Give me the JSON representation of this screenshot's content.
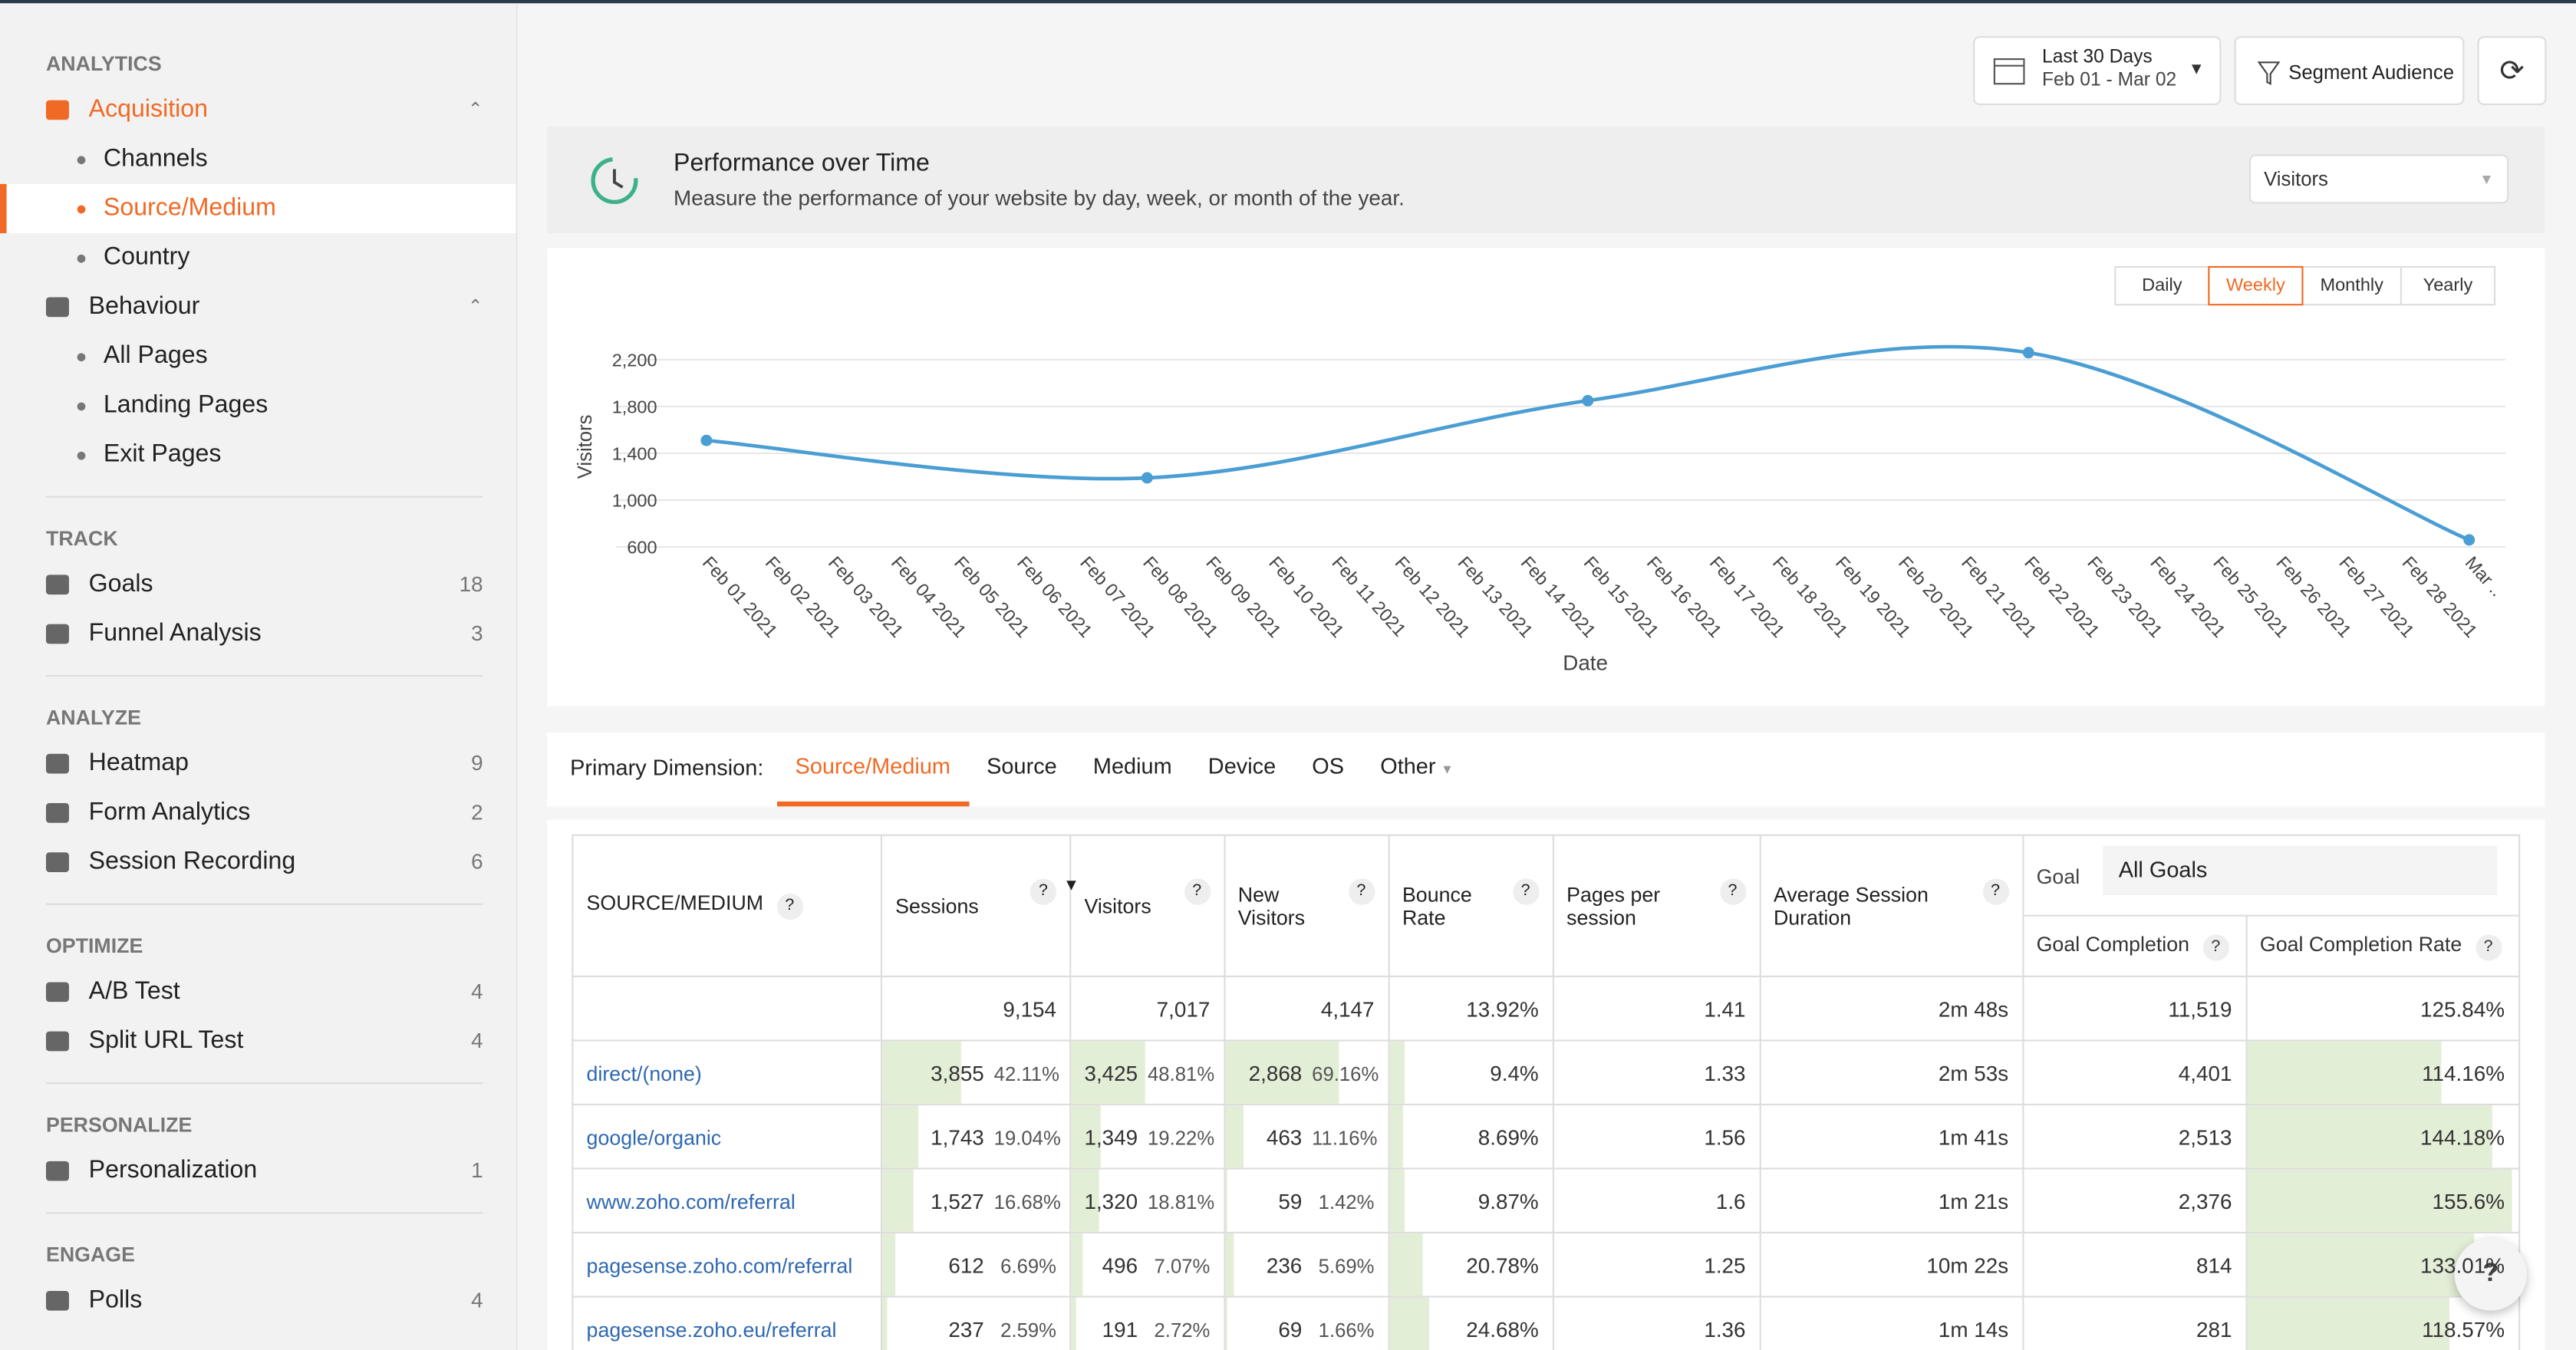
{
  "sidebar": {
    "sections": [
      {
        "title": "ANALYTICS",
        "items": [
          {
            "label": "Acquisition",
            "children": [
              "Channels",
              "Source/Medium",
              "Country"
            ],
            "active_child": "Source/Medium"
          },
          {
            "label": "Behaviour",
            "children": [
              "All Pages",
              "Landing Pages",
              "Exit Pages"
            ]
          }
        ]
      },
      {
        "title": "TRACK",
        "items": [
          {
            "label": "Goals",
            "count": 18
          },
          {
            "label": "Funnel Analysis",
            "count": 3
          }
        ]
      },
      {
        "title": "ANALYZE",
        "items": [
          {
            "label": "Heatmap",
            "count": 9
          },
          {
            "label": "Form Analytics",
            "count": 2
          },
          {
            "label": "Session Recording",
            "count": 6
          }
        ]
      },
      {
        "title": "OPTIMIZE",
        "items": [
          {
            "label": "A/B Test",
            "count": 4
          },
          {
            "label": "Split URL Test",
            "count": 4
          }
        ]
      },
      {
        "title": "PERSONALIZE",
        "items": [
          {
            "label": "Personalization",
            "count": 1
          }
        ]
      },
      {
        "title": "ENGAGE",
        "items": [
          {
            "label": "Polls",
            "count": 4
          }
        ]
      }
    ]
  },
  "toolbar": {
    "date_range": "Last 30 Days",
    "date_span": "Feb 01 - Mar 02",
    "segment": "Segment Audience"
  },
  "performance": {
    "title": "Performance over Time",
    "subtitle": "Measure the performance of your website by day, week, or month of the year.",
    "metric": "Visitors",
    "periods": [
      "Daily",
      "Weekly",
      "Monthly",
      "Yearly"
    ],
    "active_period": "Weekly"
  },
  "chart_data": {
    "type": "line",
    "x_label": "Date",
    "y_label": "Visitors",
    "color": "#4a9ed3",
    "grid": true,
    "categories": [
      "Feb 01 2021",
      "Feb 02 2021",
      "Feb 03 2021",
      "Feb 04 2021",
      "Feb 05 2021",
      "Feb 06 2021",
      "Feb 07 2021",
      "Feb 08 2021",
      "Feb 09 2021",
      "Feb 10 2021",
      "Feb 11 2021",
      "Feb 12 2021",
      "Feb 13 2021",
      "Feb 14 2021",
      "Feb 15 2021",
      "Feb 16 2021",
      "Feb 17 2021",
      "Feb 18 2021",
      "Feb 19 2021",
      "Feb 20 2021",
      "Feb 21 2021",
      "Feb 22 2021",
      "Feb 23 2021",
      "Feb 24 2021",
      "Feb 25 2021",
      "Feb 26 2021",
      "Feb 27 2021",
      "Feb 28 2021",
      "Mar .."
    ],
    "values": [
      1510,
      null,
      null,
      null,
      null,
      null,
      null,
      1190,
      null,
      null,
      null,
      null,
      null,
      null,
      1850,
      null,
      null,
      null,
      null,
      null,
      null,
      2260,
      null,
      null,
      null,
      null,
      null,
      null,
      660
    ],
    "ylim": [
      600,
      2200
    ],
    "yticks": [
      {
        "value": 600,
        "label": "600"
      },
      {
        "value": 1000,
        "label": "1,000"
      },
      {
        "value": 1400,
        "label": "1,400"
      },
      {
        "value": 1800,
        "label": "1,800"
      },
      {
        "value": 2200,
        "label": "2,200"
      }
    ]
  },
  "dimension": {
    "label": "Primary Dimension:",
    "tabs": [
      "Source/Medium",
      "Source",
      "Medium",
      "Device",
      "OS",
      "Other"
    ],
    "active": "Source/Medium"
  },
  "table": {
    "columns": [
      "SOURCE/MEDIUM",
      "Sessions",
      "Visitors",
      "New Visitors",
      "Bounce Rate",
      "Pages per session",
      "Average Session Duration"
    ],
    "goal_label": "Goal",
    "goal_select": "All Goals",
    "goal_columns": [
      "Goal Completion",
      "Goal Completion Rate"
    ],
    "totals": [
      "9,154",
      "7,017",
      "4,147",
      "13.92%",
      "1.41",
      "2m 48s",
      "11,519",
      "125.84%"
    ],
    "rows": [
      [
        "direct/(none)",
        "3,855",
        "42.11%",
        "3,425",
        "48.81%",
        "2,868",
        "69.16%",
        "9.4%",
        "1.33",
        "2m 53s",
        "4,401",
        "114.16%"
      ],
      [
        "google/organic",
        "1,743",
        "19.04%",
        "1,349",
        "19.22%",
        "463",
        "11.16%",
        "8.69%",
        "1.56",
        "1m 41s",
        "2,513",
        "144.18%"
      ],
      [
        "www.zoho.com/referral",
        "1,527",
        "16.68%",
        "1,320",
        "18.81%",
        "59",
        "1.42%",
        "9.87%",
        "1.6",
        "1m 21s",
        "2,376",
        "155.6%"
      ],
      [
        "pagesense.zoho.com/referral",
        "612",
        "6.69%",
        "496",
        "7.07%",
        "236",
        "5.69%",
        "20.78%",
        "1.25",
        "10m 22s",
        "814",
        "133.01%"
      ],
      [
        "pagesense.zoho.eu/referral",
        "237",
        "2.59%",
        "191",
        "2.72%",
        "69",
        "1.66%",
        "24.68%",
        "1.36",
        "1m 14s",
        "281",
        "118.57%"
      ]
    ]
  }
}
